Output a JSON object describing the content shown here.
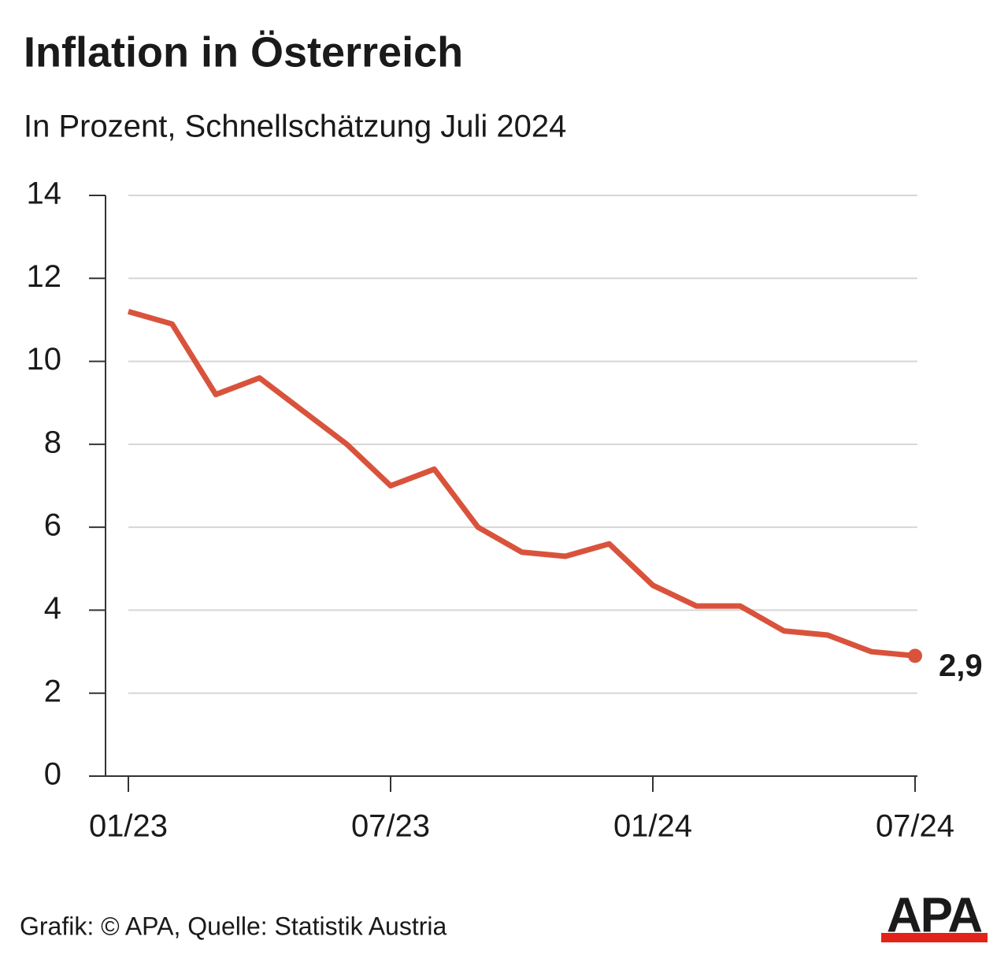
{
  "chart_data": {
    "type": "line",
    "title": "Inflation in Österreich",
    "subtitle": "In Prozent, Schnellschätzung Juli 2024",
    "categories": [
      "01/23",
      null,
      null,
      null,
      null,
      null,
      "07/23",
      null,
      null,
      null,
      null,
      null,
      "01/24",
      null,
      null,
      null,
      null,
      null,
      "07/24"
    ],
    "series": [
      {
        "name": "Inflation",
        "color": "#d9533c",
        "values": [
          11.2,
          10.9,
          9.2,
          9.6,
          8.8,
          8.0,
          7.0,
          7.4,
          6.0,
          5.4,
          5.3,
          5.6,
          4.6,
          4.1,
          4.1,
          3.5,
          3.4,
          3.0,
          2.9
        ],
        "value_labels": [
          null,
          null,
          null,
          null,
          null,
          null,
          null,
          null,
          null,
          null,
          null,
          null,
          null,
          null,
          null,
          null,
          null,
          null,
          "2,9"
        ]
      }
    ],
    "ylim": [
      0,
      14
    ],
    "yticks": [
      0,
      2,
      4,
      6,
      8,
      10,
      12,
      14
    ],
    "grid": true,
    "source": "Grafik: © APA, Quelle: Statistik Austria",
    "logo": "APA"
  }
}
